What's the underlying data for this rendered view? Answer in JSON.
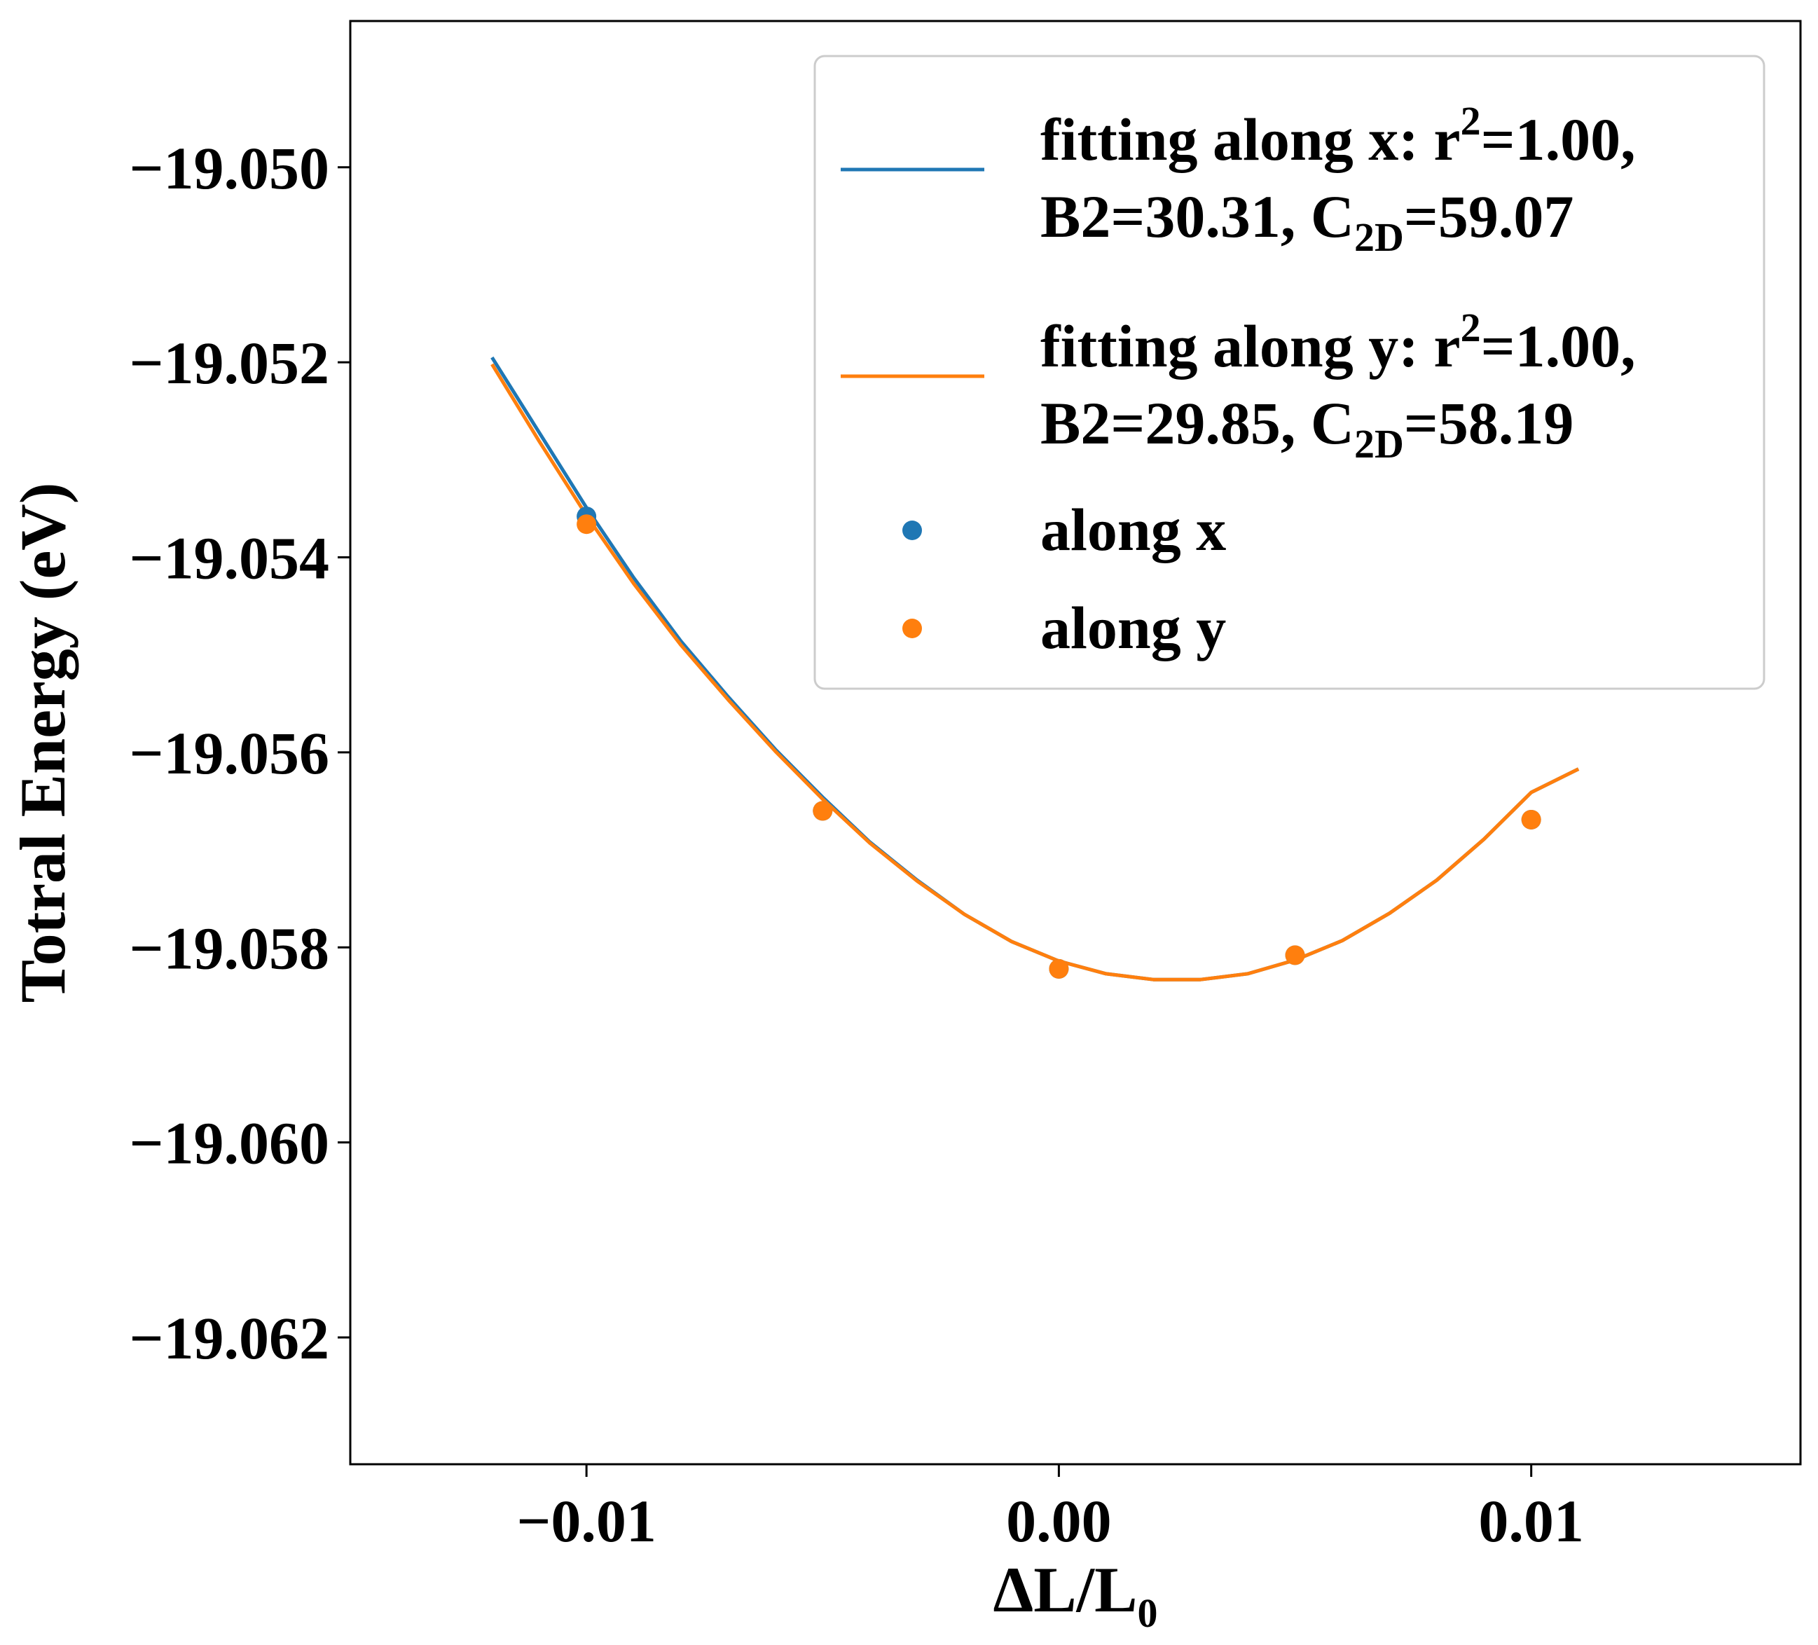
{
  "chart_data": {
    "type": "scatter",
    "xlabel_main": "ΔL/L",
    "xlabel_sub": "0",
    "ylabel": "Totral Energy (eV)",
    "xlim": [
      -0.015,
      0.0157
    ],
    "ylim": [
      -19.0633,
      -19.0485
    ],
    "xticks": [
      -0.01,
      0.0,
      0.01
    ],
    "xtick_labels": [
      "−0.01",
      "0.00",
      "0.01"
    ],
    "yticks": [
      -19.05,
      -19.052,
      -19.054,
      -19.056,
      -19.058,
      -19.06,
      -19.062
    ],
    "ytick_labels": [
      "−19.050",
      "−19.052",
      "−19.054",
      "−19.056",
      "−19.058",
      "−19.060",
      "−19.062"
    ],
    "grid": false,
    "legend_position": "top-right",
    "series": [
      {
        "key": "fit_x",
        "kind": "line",
        "color": "#1f77b4",
        "label_line1_pre": "fitting along x: r",
        "label_line1_sup": "2",
        "label_line1_post": "=1.00,",
        "label_line2_pre": "B2=30.31, C",
        "label_line2_sub": "2D",
        "label_line2_post": "=59.07",
        "x": [
          -0.012,
          -0.011,
          -0.01,
          -0.009,
          -0.008,
          -0.007,
          -0.006,
          -0.005,
          -0.004,
          -0.003,
          -0.002,
          -0.001,
          0.0,
          0.001,
          0.002,
          0.003,
          0.004,
          0.005,
          0.006,
          0.007,
          0.008,
          0.009,
          0.01,
          0.011
        ],
        "y": [
          -19.05195,
          -19.05272,
          -19.05349,
          -19.05421,
          -19.05486,
          -19.05543,
          -19.05597,
          -19.05646,
          -19.05692,
          -19.05731,
          -19.05766,
          -19.05794,
          -19.05814,
          -19.05827,
          -19.05833,
          -19.05833,
          -19.05827,
          -19.05813,
          -19.05793,
          -19.05765,
          -19.05731,
          -19.05689,
          -19.05641,
          -19.05617
        ]
      },
      {
        "key": "fit_y",
        "kind": "line",
        "color": "#ff7f0e",
        "label_line1_pre": "fitting along y: r",
        "label_line1_sup": "2",
        "label_line1_post": "=1.00,",
        "label_line2_pre": "B2=29.85, C",
        "label_line2_sub": "2D",
        "label_line2_post": "=58.19",
        "x": [
          -0.012,
          -0.011,
          -0.01,
          -0.009,
          -0.008,
          -0.007,
          -0.006,
          -0.005,
          -0.004,
          -0.003,
          -0.002,
          -0.001,
          0.0,
          0.001,
          0.002,
          0.003,
          0.004,
          0.005,
          0.006,
          0.007,
          0.008,
          0.009,
          0.01,
          0.011
        ],
        "y": [
          -19.05202,
          -19.05281,
          -19.05357,
          -19.05427,
          -19.0549,
          -19.05546,
          -19.05599,
          -19.05648,
          -19.05693,
          -19.05732,
          -19.05766,
          -19.05794,
          -19.05814,
          -19.05827,
          -19.05833,
          -19.05833,
          -19.05827,
          -19.05813,
          -19.05793,
          -19.05765,
          -19.05731,
          -19.05689,
          -19.05641,
          -19.05617
        ]
      },
      {
        "key": "pts_x",
        "kind": "scatter",
        "color": "#1f77b4",
        "label": "along x",
        "x": [
          -0.01,
          -0.005,
          0.0,
          0.005,
          0.01
        ],
        "y": [
          -19.05358,
          -19.0566,
          -19.05822,
          -19.05808,
          -19.05669
        ]
      },
      {
        "key": "pts_y",
        "kind": "scatter",
        "color": "#ff7f0e",
        "label": "along y",
        "x": [
          -0.01,
          -0.005,
          0.0,
          0.005,
          0.01
        ],
        "y": [
          -19.05366,
          -19.0566,
          -19.05822,
          -19.05808,
          -19.05669
        ]
      }
    ]
  }
}
